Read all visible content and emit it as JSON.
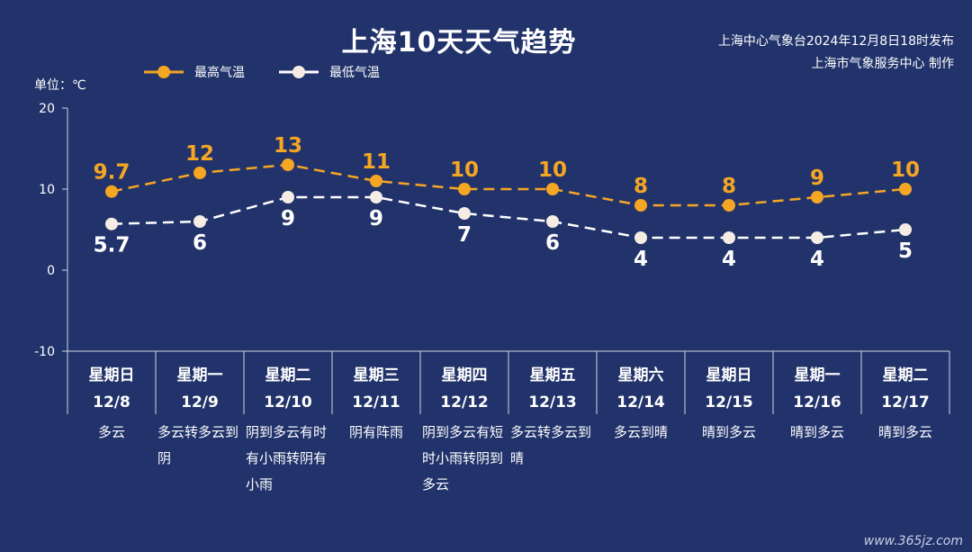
{
  "header": {
    "title": "上海10天天气趋势",
    "source_line1": "上海中心气象台2024年12月8日18时发布",
    "source_line2": "上海市气象服务中心 制作"
  },
  "legend": {
    "high_label": "最高气温",
    "low_label": "最低气温"
  },
  "unit_label": "单位：℃",
  "watermark": "www.365jz.com",
  "colors": {
    "background": "#22336b",
    "high": "#f5a623",
    "low": "#ffffff",
    "axis": "#cfd6e6"
  },
  "chart_data": {
    "type": "line",
    "ylim": [
      -10,
      20
    ],
    "yticks": [
      "20",
      "10",
      "0",
      "-10"
    ],
    "categories": [
      {
        "weekday": "星期日",
        "date": "12/8",
        "weather": "多云"
      },
      {
        "weekday": "星期一",
        "date": "12/9",
        "weather": "多云转多云到阴"
      },
      {
        "weekday": "星期二",
        "date": "12/10",
        "weather": "阴到多云有时有小雨转阴有小雨"
      },
      {
        "weekday": "星期三",
        "date": "12/11",
        "weather": "阴有阵雨"
      },
      {
        "weekday": "星期四",
        "date": "12/12",
        "weather": "阴到多云有短时小雨转阴到多云"
      },
      {
        "weekday": "星期五",
        "date": "12/13",
        "weather": "多云转多云到晴"
      },
      {
        "weekday": "星期六",
        "date": "12/14",
        "weather": "多云到晴"
      },
      {
        "weekday": "星期日",
        "date": "12/15",
        "weather": "晴到多云"
      },
      {
        "weekday": "星期一",
        "date": "12/16",
        "weather": "晴到多云"
      },
      {
        "weekday": "星期二",
        "date": "12/17",
        "weather": "晴到多云"
      }
    ],
    "series": [
      {
        "name": "最高气温",
        "values": [
          9.7,
          12,
          13,
          11,
          10,
          10,
          8,
          8,
          9,
          10
        ],
        "labels": [
          "9.7",
          "12",
          "13",
          "11",
          "10",
          "10",
          "8",
          "8",
          "9",
          "10"
        ]
      },
      {
        "name": "最低气温",
        "values": [
          5.7,
          6,
          9,
          9,
          7,
          6,
          4,
          4,
          4,
          5
        ],
        "labels": [
          "5.7",
          "6",
          "9",
          "9",
          "7",
          "6",
          "4",
          "4",
          "4",
          "5"
        ]
      }
    ]
  }
}
